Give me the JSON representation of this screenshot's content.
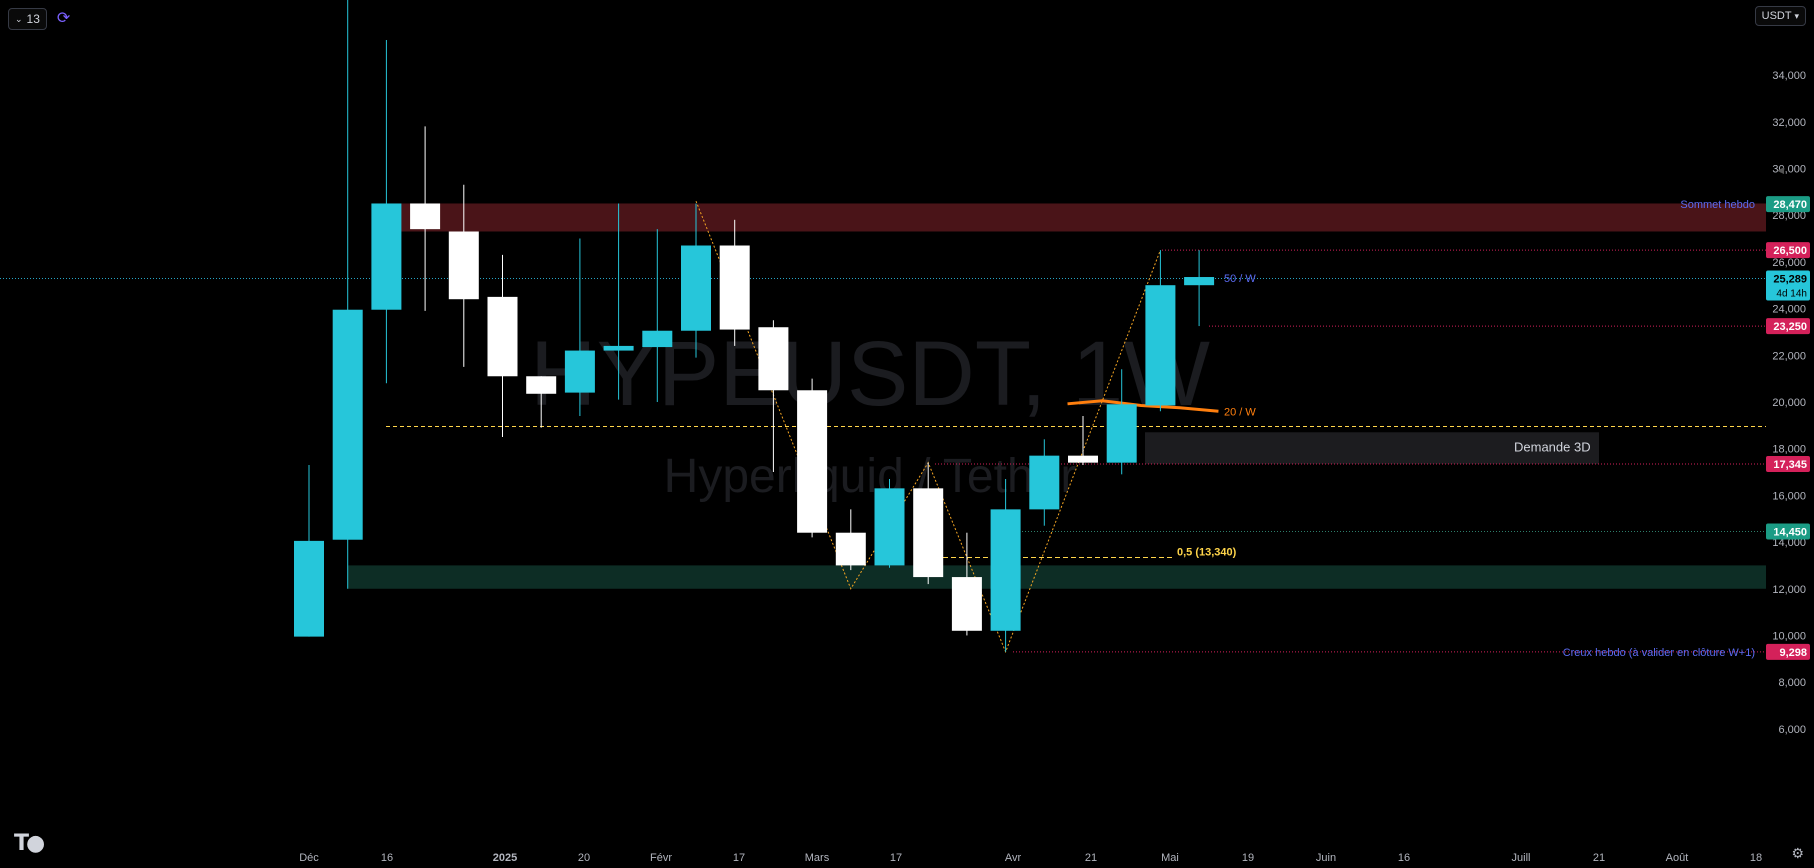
{
  "toolbar": {
    "interval_count": "13",
    "currency": "USDT"
  },
  "watermark": {
    "symbol": "HYPEUSDT, 1W",
    "name": "Hyperliquid / Tether"
  },
  "colors": {
    "background": "#000000",
    "bull": "#26c6da",
    "bear": "#ffffff",
    "supply_zone": "#4a1418",
    "demand_zone_bottom": "#0d2d25",
    "demand_3d_zone": "#1c1c1f",
    "ma20": "#ff7f0e",
    "zigzag": "#f5a623",
    "fib": "#ffd54a",
    "label_green": "#1b9c85",
    "label_red": "#d4215a",
    "label_cyan": "#26c6da"
  },
  "chart_data": {
    "type": "candlestick",
    "x_ticks": [
      "Déc",
      "16",
      "2025",
      "20",
      "Févr",
      "17",
      "Mars",
      "17",
      "Avr",
      "21",
      "Mai",
      "19",
      "Juin",
      "16",
      "Juill",
      "21",
      "Août",
      "18"
    ],
    "y_ticks": [
      "34,000",
      "32,000",
      "30,000",
      "28,000",
      "26,000",
      "24,000",
      "22,000",
      "20,000",
      "18,000",
      "16,000",
      "14,000",
      "12,000",
      "10,000",
      "8,000",
      "6,000"
    ],
    "ylim": [
      5500,
      36500
    ],
    "candles": [
      {
        "o": 9.95,
        "h": 17.3,
        "l": 9.95,
        "c": 14.05
      },
      {
        "o": 14.1,
        "h": 38.0,
        "l": 12.0,
        "c": 23.95
      },
      {
        "o": 23.95,
        "h": 35.5,
        "l": 20.8,
        "c": 28.5
      },
      {
        "o": 28.5,
        "h": 31.8,
        "l": 23.9,
        "c": 27.4
      },
      {
        "o": 27.3,
        "h": 29.3,
        "l": 21.5,
        "c": 24.4
      },
      {
        "o": 24.5,
        "h": 26.3,
        "l": 18.5,
        "c": 21.1
      },
      {
        "o": 21.1,
        "h": 21.1,
        "l": 18.9,
        "c": 20.35
      },
      {
        "o": 20.4,
        "h": 27.0,
        "l": 19.4,
        "c": 22.2
      },
      {
        "o": 22.2,
        "h": 28.5,
        "l": 20.1,
        "c": 22.4
      },
      {
        "o": 22.35,
        "h": 27.4,
        "l": 20.0,
        "c": 23.05
      },
      {
        "o": 23.05,
        "h": 28.5,
        "l": 21.9,
        "c": 26.7
      },
      {
        "o": 26.7,
        "h": 27.8,
        "l": 22.4,
        "c": 23.1
      },
      {
        "o": 23.2,
        "h": 23.5,
        "l": 17.0,
        "c": 20.5
      },
      {
        "o": 20.5,
        "h": 21.0,
        "l": 14.2,
        "c": 14.4
      },
      {
        "o": 14.4,
        "h": 15.4,
        "l": 12.8,
        "c": 13.0
      },
      {
        "o": 13.0,
        "h": 16.7,
        "l": 12.9,
        "c": 16.3
      },
      {
        "o": 16.3,
        "h": 17.4,
        "l": 12.2,
        "c": 12.5
      },
      {
        "o": 12.5,
        "h": 14.4,
        "l": 10.0,
        "c": 10.2
      },
      {
        "o": 10.2,
        "h": 16.7,
        "l": 9.3,
        "c": 15.4
      },
      {
        "o": 15.4,
        "h": 18.4,
        "l": 14.7,
        "c": 17.7
      },
      {
        "o": 17.7,
        "h": 19.4,
        "l": 17.3,
        "c": 17.4
      },
      {
        "o": 17.4,
        "h": 21.4,
        "l": 16.9,
        "c": 19.9
      },
      {
        "o": 19.85,
        "h": 26.5,
        "l": 19.6,
        "c": 25.0
      },
      {
        "o": 25.0,
        "h": 26.5,
        "l": 23.25,
        "c": 25.35
      }
    ],
    "price_labels": [
      {
        "text": "28,470",
        "kind": "green"
      },
      {
        "text": "26,500",
        "kind": "red"
      },
      {
        "text": "25,289",
        "kind": "current",
        "sub": "4d 14h"
      },
      {
        "text": "23,250",
        "kind": "red"
      },
      {
        "text": "17,345",
        "kind": "red"
      },
      {
        "text": "14,450",
        "kind": "green"
      },
      {
        "text": "9,298",
        "kind": "red"
      }
    ],
    "annotations": {
      "sommet": "Sommet hebdo",
      "creux": "Creux hebdo (à valider en clôture W+1)",
      "ma50": "50 / W",
      "ma20": "20 / W",
      "demande": "Demande 3D",
      "fib": "0,5 (13,340)"
    }
  }
}
